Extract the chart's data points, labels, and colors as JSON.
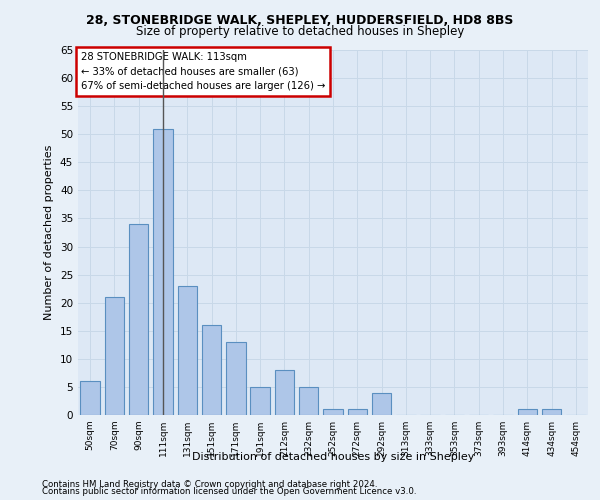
{
  "title1": "28, STONEBRIDGE WALK, SHEPLEY, HUDDERSFIELD, HD8 8BS",
  "title2": "Size of property relative to detached houses in Shepley",
  "xlabel": "Distribution of detached houses by size in Shepley",
  "ylabel": "Number of detached properties",
  "footnote1": "Contains HM Land Registry data © Crown copyright and database right 2024.",
  "footnote2": "Contains public sector information licensed under the Open Government Licence v3.0.",
  "annotation_title": "28 STONEBRIDGE WALK: 113sqm",
  "annotation_line2": "← 33% of detached houses are smaller (63)",
  "annotation_line3": "67% of semi-detached houses are larger (126) →",
  "bar_labels": [
    "50sqm",
    "70sqm",
    "90sqm",
    "111sqm",
    "131sqm",
    "151sqm",
    "171sqm",
    "191sqm",
    "212sqm",
    "232sqm",
    "252sqm",
    "272sqm",
    "292sqm",
    "313sqm",
    "333sqm",
    "353sqm",
    "373sqm",
    "393sqm",
    "414sqm",
    "434sqm",
    "454sqm"
  ],
  "bar_values": [
    6,
    21,
    34,
    51,
    23,
    16,
    13,
    5,
    8,
    5,
    1,
    1,
    4,
    0,
    0,
    0,
    0,
    0,
    1,
    1,
    0
  ],
  "bar_color": "#aec6e8",
  "bar_edge_color": "#5a8fc0",
  "subject_bar_index": 3,
  "vline_color": "#555555",
  "ylim": [
    0,
    65
  ],
  "yticks": [
    0,
    5,
    10,
    15,
    20,
    25,
    30,
    35,
    40,
    45,
    50,
    55,
    60,
    65
  ],
  "annotation_box_edge": "#cc0000",
  "grid_color": "#c8d8e8",
  "bg_color": "#e8f0f8",
  "plot_bg_color": "#dde8f5"
}
